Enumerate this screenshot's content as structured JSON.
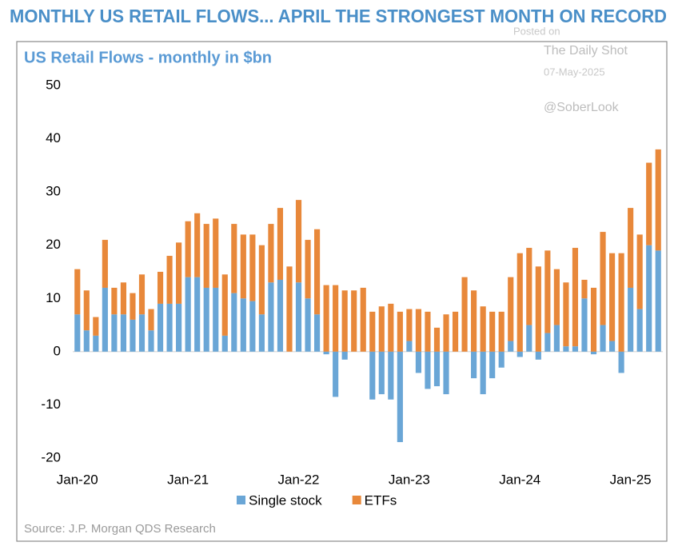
{
  "chart_data": {
    "type": "bar",
    "stacked": true,
    "title": "MONTHLY US RETAIL FLOWS... APRIL THE STRONGEST MONTH ON RECORD",
    "subtitle": "US Retail Flows - monthly in $bn",
    "annotations": [
      "Posted on",
      "The Daily Shot",
      "07-May-2025",
      "@SoberLook"
    ],
    "source": "Source: J.P. Morgan QDS Research",
    "categories": [
      "Jan-20",
      null,
      null,
      null,
      null,
      null,
      null,
      null,
      null,
      null,
      null,
      null,
      "Jan-21",
      null,
      null,
      null,
      null,
      null,
      null,
      null,
      null,
      null,
      null,
      null,
      "Jan-22",
      null,
      null,
      null,
      null,
      null,
      null,
      null,
      null,
      null,
      null,
      null,
      "Jan-23",
      null,
      null,
      null,
      null,
      null,
      null,
      null,
      null,
      null,
      null,
      null,
      "Jan-24",
      null,
      null,
      null,
      null,
      null,
      null,
      null,
      null,
      null,
      null,
      null,
      "Jan-25",
      null,
      null,
      null
    ],
    "series": [
      {
        "name": "Single stock",
        "color": "#6aa6d6",
        "values": [
          7,
          4,
          3,
          12,
          7,
          7,
          6,
          7,
          4,
          9,
          9,
          9,
          14,
          14,
          12,
          12,
          3,
          11,
          10,
          9.5,
          7,
          13,
          13.5,
          0,
          13,
          10,
          7,
          -0.5,
          -8.5,
          -1.5,
          0,
          0,
          -9,
          -8,
          -9,
          -17,
          2,
          -4,
          -7,
          -6.5,
          -8,
          0,
          0,
          -5,
          -8,
          -5,
          -3,
          2,
          -1,
          5,
          -1.5,
          3.5,
          5,
          1,
          1,
          10,
          -0.5,
          5,
          2,
          -4,
          12,
          8,
          20,
          19
        ]
      },
      {
        "name": "ETFs",
        "color": "#e8883a",
        "values": [
          8.5,
          7.5,
          3.5,
          9,
          5,
          6,
          5,
          7.5,
          4,
          6,
          9,
          11.5,
          10.5,
          12,
          12,
          13,
          11.5,
          13,
          12,
          12.5,
          13,
          11,
          13.5,
          16,
          15.5,
          11,
          16,
          12.5,
          12.5,
          11.5,
          11.5,
          12,
          7.5,
          8.5,
          9,
          7.5,
          6,
          8,
          7.5,
          4.5,
          7,
          7.5,
          14,
          11.5,
          8.5,
          7.5,
          7.5,
          12,
          18.5,
          14.5,
          16,
          15.5,
          10.5,
          12,
          18.5,
          3.5,
          12,
          17.5,
          16.5,
          18.5,
          15,
          14,
          15.5,
          19
        ]
      }
    ],
    "ylim": [
      -20,
      50
    ],
    "yticks": [
      -20,
      -10,
      0,
      10,
      20,
      30,
      40,
      50
    ],
    "grid": false,
    "legend": "bottom"
  }
}
